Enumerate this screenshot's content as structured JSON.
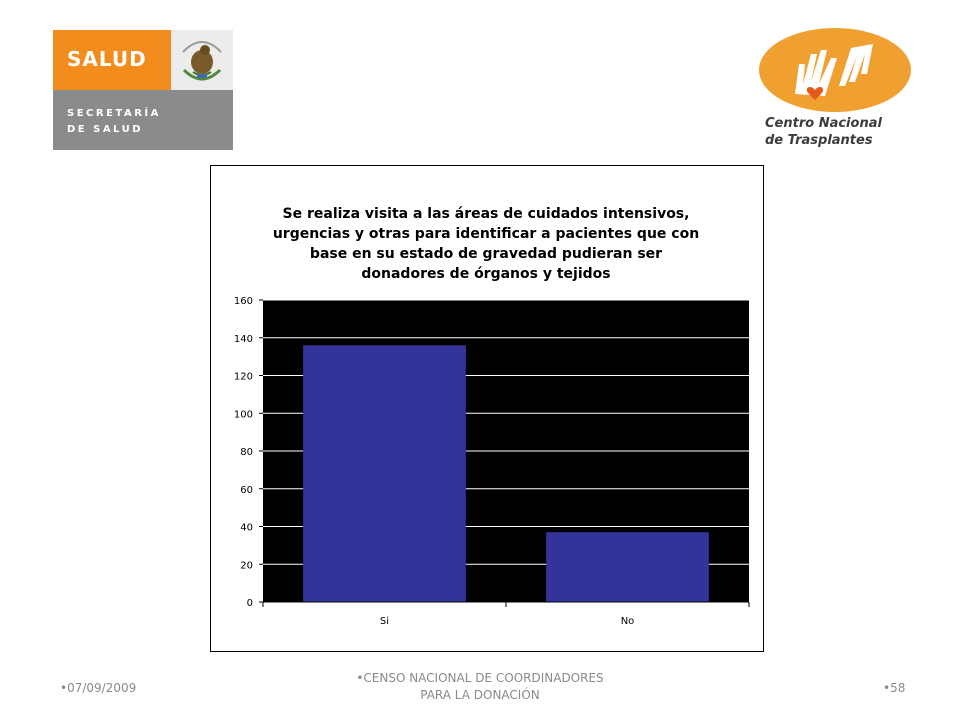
{
  "logos": {
    "salud": {
      "word": "SALUD",
      "lines": [
        "SECRETARÍA",
        "DE SALUD"
      ],
      "colors": {
        "orange": "#f28c1c",
        "gray": "#898b8d"
      },
      "seal_icon": "mexican-coat-of-arms-icon"
    },
    "cenatra": {
      "lines": [
        "Centro Nacional",
        "de Trasplantes"
      ],
      "colors": {
        "oval": "#f0a030",
        "hands": "#ffffff",
        "heart": "#f0a030"
      },
      "icon": "hands-heart-icon"
    }
  },
  "chart_data": {
    "type": "bar",
    "title": "Se realiza visita a las áreas de cuidados intensivos,\nurgencias y otras para identificar a pacientes que con\nbase en su estado de gravedad pudieran ser\ndonadores de órganos y tejidos",
    "categories": [
      "Si",
      "No"
    ],
    "values": [
      136,
      37
    ],
    "ylim": [
      0,
      160
    ],
    "yticks": [
      0,
      20,
      40,
      60,
      80,
      100,
      120,
      140,
      160
    ],
    "xlabel": "",
    "ylabel": "",
    "grid": true,
    "legend": "none",
    "colors": {
      "bar": "#333399",
      "plot_background": "#000000",
      "gridline": "#ffffff"
    }
  },
  "footer": {
    "date": "•07/09/2009",
    "center_line1": "•CENSO NACIONAL DE COORDINADORES",
    "center_line2": "PARA LA DONACIÓN",
    "page": "•58"
  }
}
